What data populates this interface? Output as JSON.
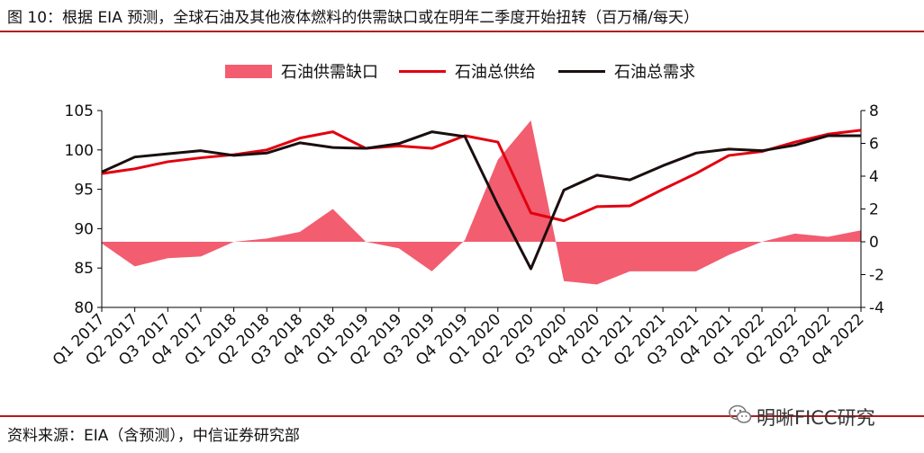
{
  "title": "图 10：根据 EIA 预测，全球石油及其他液体燃料的供需缺口或在明年二季度开始扭转（百万桶/每天）",
  "source": "资料来源：EIA（含预测），中信证券研究部",
  "watermark": "明晰FICC研究",
  "colors": {
    "gap": "#f25d70",
    "supply": "#e2000f",
    "demand": "#1a0e0e",
    "rule": "#b31b1b"
  },
  "chart_data": {
    "type": "line",
    "categories": [
      "Q1 2017",
      "Q2 2017",
      "Q3 2017",
      "Q4 2017",
      "Q1 2018",
      "Q2 2018",
      "Q3 2018",
      "Q4 2018",
      "Q1 2019",
      "Q2 2019",
      "Q3 2019",
      "Q4 2019",
      "Q1 2020",
      "Q2 2020",
      "Q3 2020",
      "Q4 2020",
      "Q1 2021",
      "Q2 2021",
      "Q3 2021",
      "Q4 2021",
      "Q1 2022",
      "Q2 2022",
      "Q3 2022",
      "Q4 2022"
    ],
    "legend": [
      "石油供需缺口",
      "石油总供给",
      "石油总需求"
    ],
    "left_axis": {
      "ylim": [
        80,
        105
      ],
      "ticks": [
        "80",
        "85",
        "90",
        "95",
        "100",
        "105"
      ]
    },
    "right_axis": {
      "ylim": [
        -4,
        8
      ],
      "ticks": [
        "-4",
        "-2",
        "0",
        "2",
        "4",
        "6",
        "8"
      ]
    },
    "series": [
      {
        "name": "石油供需缺口",
        "type": "area",
        "axis": "right",
        "values": [
          -0.1,
          -1.5,
          -1.0,
          -0.9,
          0.0,
          0.2,
          0.6,
          2.0,
          0.0,
          -0.4,
          -1.8,
          0.1,
          5.0,
          7.4,
          -2.4,
          -2.6,
          -1.8,
          -1.8,
          -1.8,
          -0.8,
          0.0,
          0.5,
          0.3,
          0.7
        ]
      },
      {
        "name": "石油总供给",
        "type": "line",
        "axis": "left",
        "values": [
          97.0,
          97.6,
          98.5,
          99.0,
          99.4,
          100.0,
          101.5,
          102.3,
          100.2,
          100.5,
          100.2,
          101.8,
          101.0,
          92.0,
          91.0,
          92.8,
          92.9,
          95.0,
          97.0,
          99.3,
          99.8,
          101.0,
          102.0,
          102.5
        ]
      },
      {
        "name": "石油总需求",
        "type": "line",
        "axis": "left",
        "values": [
          97.2,
          99.1,
          99.5,
          99.9,
          99.3,
          99.6,
          100.9,
          100.3,
          100.2,
          100.8,
          102.3,
          101.7,
          93.0,
          84.9,
          94.9,
          96.8,
          96.2,
          98.0,
          99.6,
          100.1,
          99.9,
          100.6,
          101.8,
          101.8
        ]
      }
    ]
  }
}
